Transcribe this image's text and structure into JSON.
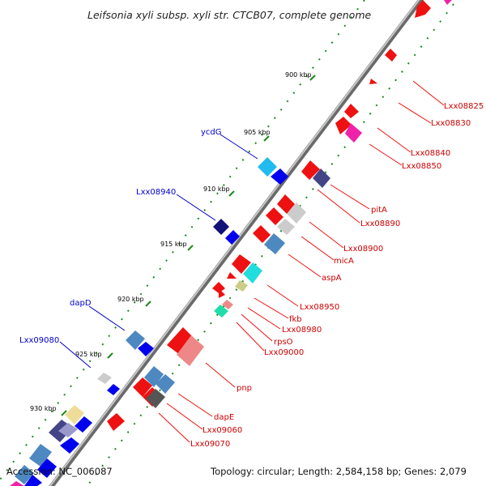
{
  "title": "Leifsonia xyli subsp. xyli str. CTCB07, complete genome",
  "footer": {
    "accession": "Accession: NC_006087",
    "summary": "Topology: circular; Length: 2,584,158 bp; Genes: 2,079"
  },
  "scale_labels": [
    "900 kbp",
    "905 kbp",
    "910 kbp",
    "915 kbp",
    "920 kbp",
    "925 kbp",
    "930 kbp"
  ],
  "left_labels": [
    "ycdG",
    "Lxx08940",
    "dapD",
    "Lxx09080"
  ],
  "right_labels": [
    "Lxx08825",
    "Lxx08830",
    "Lxx08840",
    "Lxx08850",
    "pitA",
    "Lxx08890",
    "Lxx08900",
    "micA",
    "aspA",
    "Lxx08950",
    "fkb",
    "Lxx08980",
    "rpsO",
    "Lxx09000",
    "pnp",
    "dapE",
    "Lxx09060",
    "Lxx09070"
  ],
  "colors": {
    "backbone": "#8c8c8c",
    "forward_label": "#cc0000",
    "reverse_label": "#0000cc",
    "tick": "#1a8a1a"
  }
}
